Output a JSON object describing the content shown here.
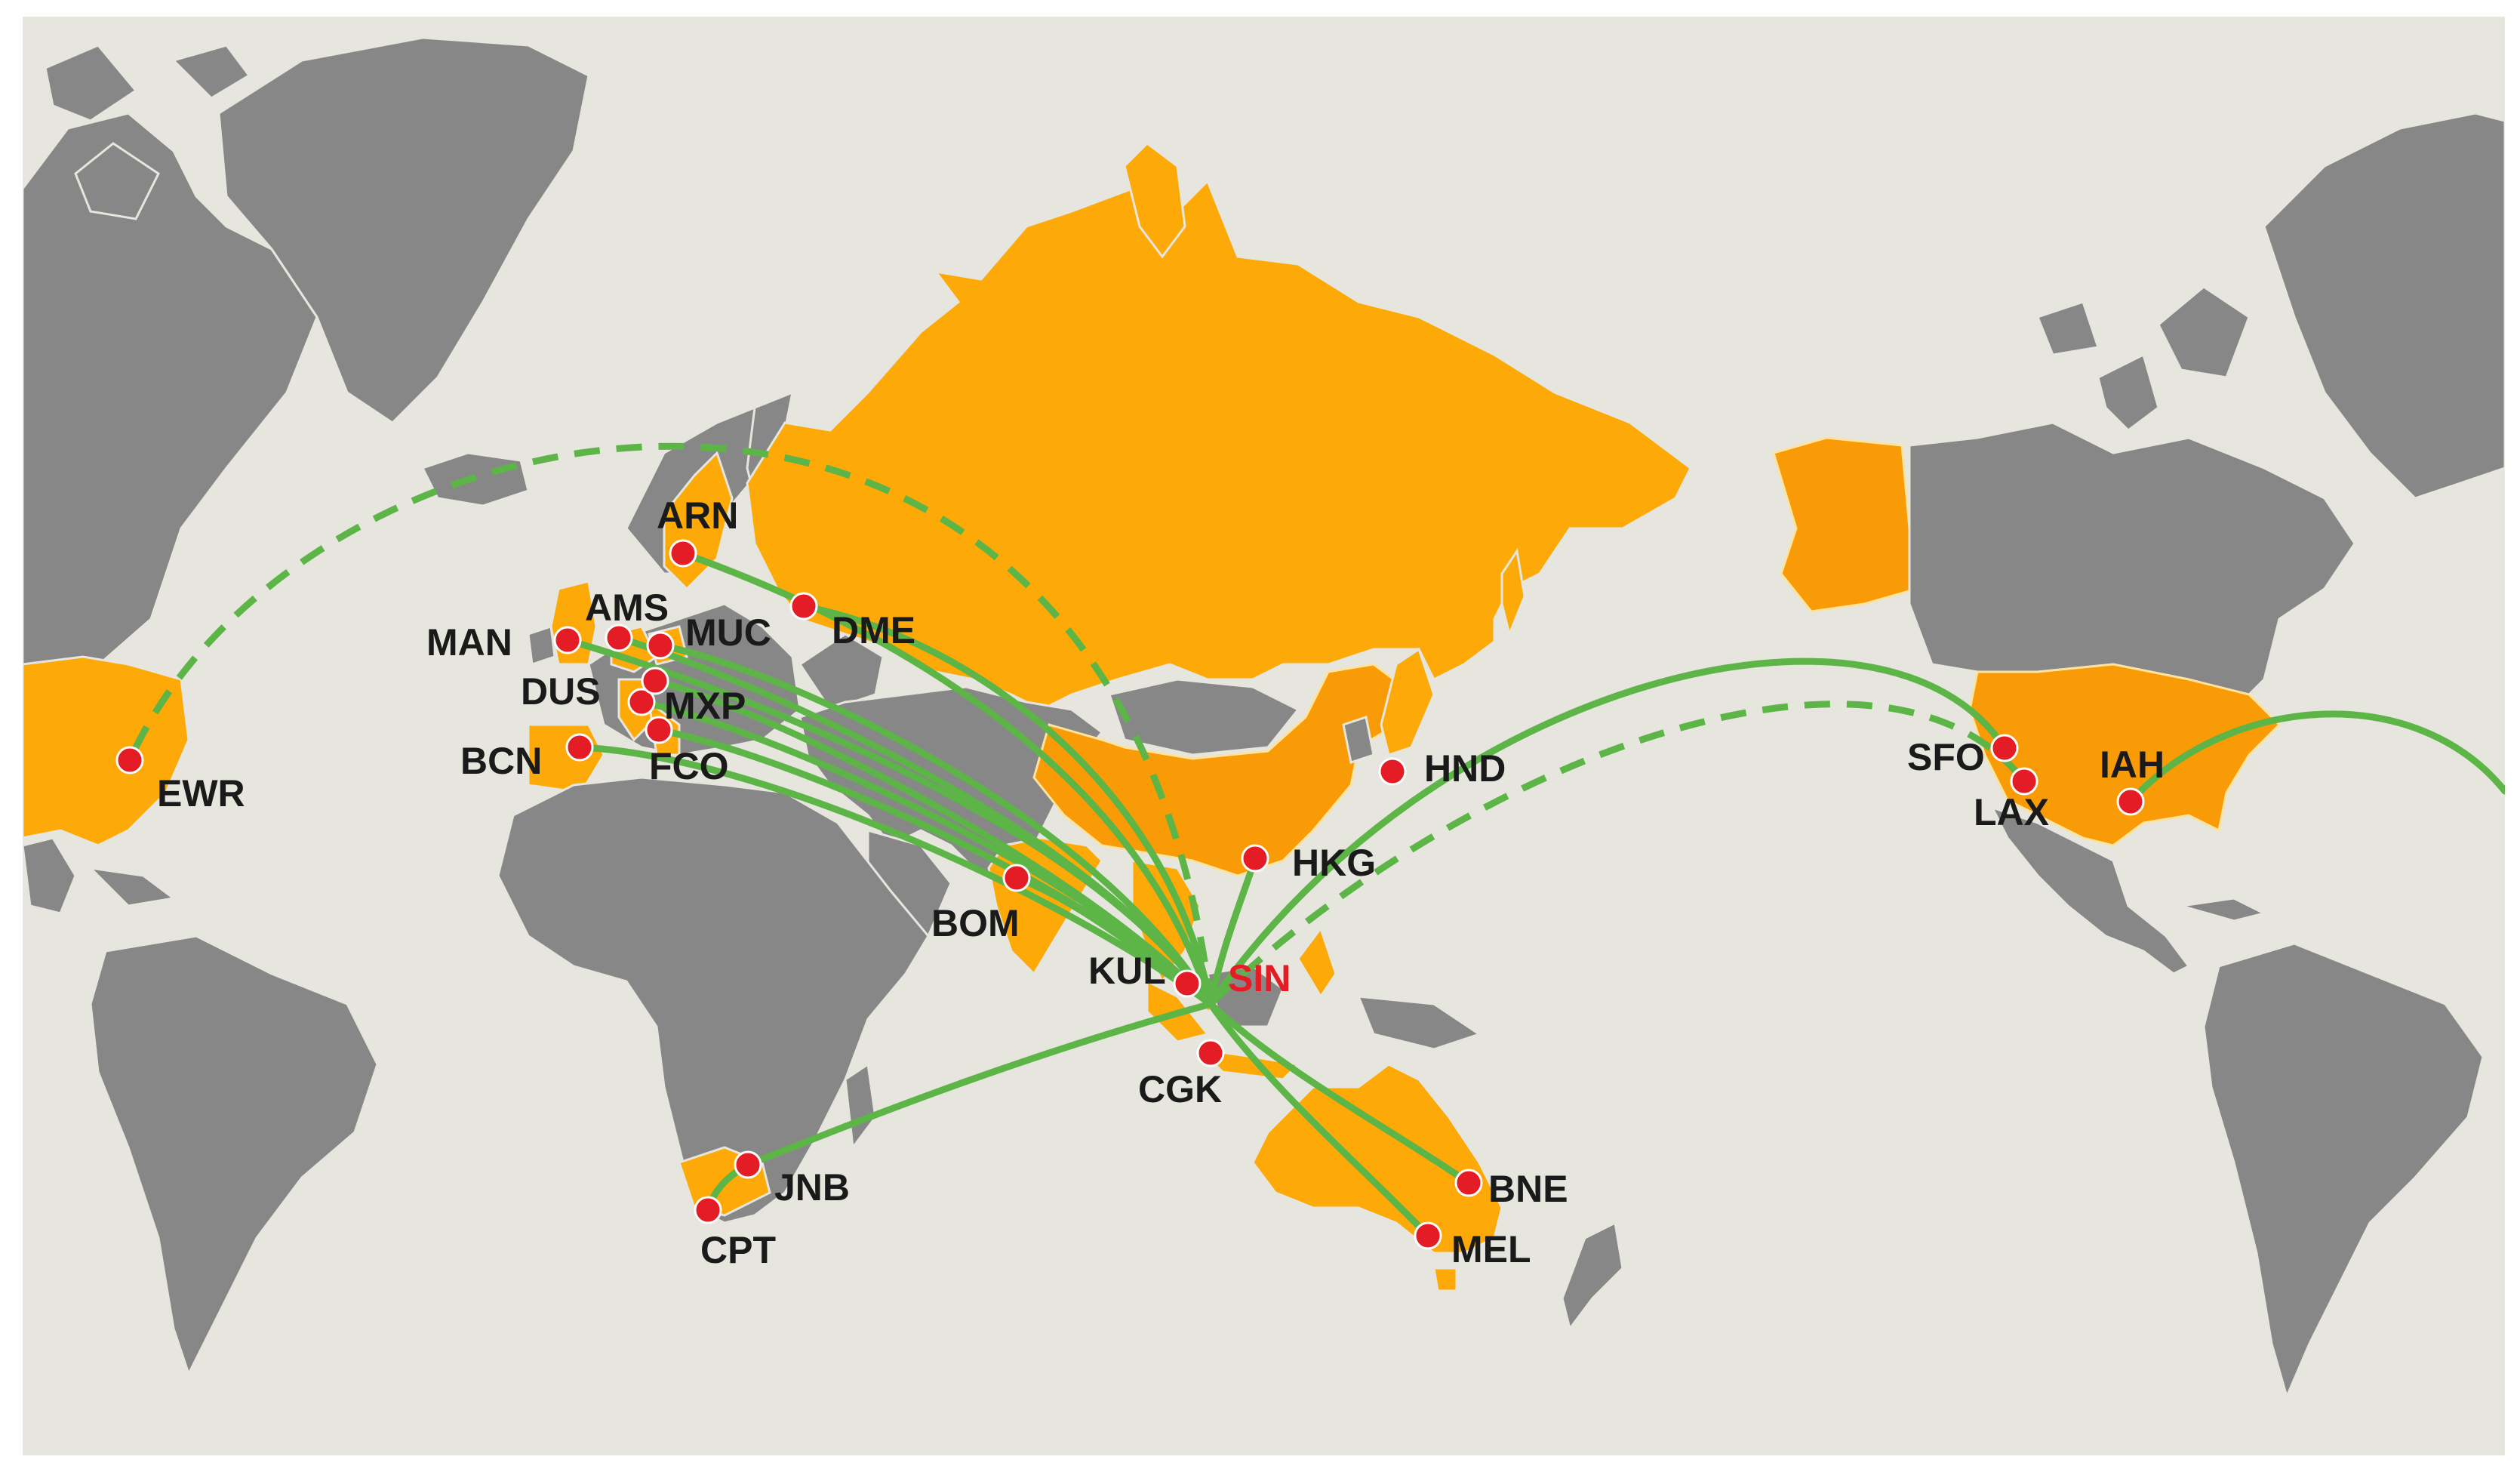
{
  "map": {
    "hub": {
      "code": "SIN",
      "color": "#e31c25"
    },
    "colors": {
      "background": "#e6e6de",
      "land_other": "#878787",
      "land_served": "#fdaa08",
      "land_served_dark": "#f99b06",
      "route": "#5db447",
      "airport_dot": "#e31c25"
    },
    "airports": [
      {
        "code": "EWR"
      },
      {
        "code": "ARN"
      },
      {
        "code": "AMS"
      },
      {
        "code": "MAN"
      },
      {
        "code": "MUC"
      },
      {
        "code": "DME"
      },
      {
        "code": "DUS"
      },
      {
        "code": "MXP"
      },
      {
        "code": "BCN"
      },
      {
        "code": "FCO"
      },
      {
        "code": "BOM"
      },
      {
        "code": "KUL"
      },
      {
        "code": "CGK"
      },
      {
        "code": "HKG"
      },
      {
        "code": "HND"
      },
      {
        "code": "JNB"
      },
      {
        "code": "CPT"
      },
      {
        "code": "BNE"
      },
      {
        "code": "MEL"
      },
      {
        "code": "SFO"
      },
      {
        "code": "LAX"
      },
      {
        "code": "IAH"
      }
    ],
    "routes": [
      {
        "from": "SIN",
        "to": "EWR",
        "style": "dashed"
      },
      {
        "from": "SIN",
        "to": "ARN",
        "style": "solid"
      },
      {
        "from": "SIN",
        "to": "AMS",
        "style": "solid"
      },
      {
        "from": "SIN",
        "to": "MAN",
        "style": "solid"
      },
      {
        "from": "SIN",
        "to": "MUC",
        "style": "solid"
      },
      {
        "from": "SIN",
        "to": "DME",
        "style": "solid"
      },
      {
        "from": "SIN",
        "to": "DUS",
        "style": "solid"
      },
      {
        "from": "SIN",
        "to": "MXP",
        "style": "solid"
      },
      {
        "from": "SIN",
        "to": "BCN",
        "style": "solid"
      },
      {
        "from": "SIN",
        "to": "FCO",
        "style": "solid"
      },
      {
        "from": "SIN",
        "to": "BOM",
        "style": "solid"
      },
      {
        "from": "SIN",
        "to": "HKG",
        "style": "solid"
      },
      {
        "from": "SIN",
        "to": "JNB",
        "style": "solid"
      },
      {
        "from": "SIN",
        "to": "BNE",
        "style": "solid"
      },
      {
        "from": "SIN",
        "to": "MEL",
        "style": "solid"
      },
      {
        "from": "SIN",
        "to": "SFO",
        "style": "solid"
      },
      {
        "from": "SIN",
        "to": "LAX",
        "style": "dashed"
      },
      {
        "from": "IAH",
        "to": "east-edge",
        "style": "solid"
      },
      {
        "from": "JNB",
        "to": "CPT",
        "style": "solid"
      }
    ]
  }
}
